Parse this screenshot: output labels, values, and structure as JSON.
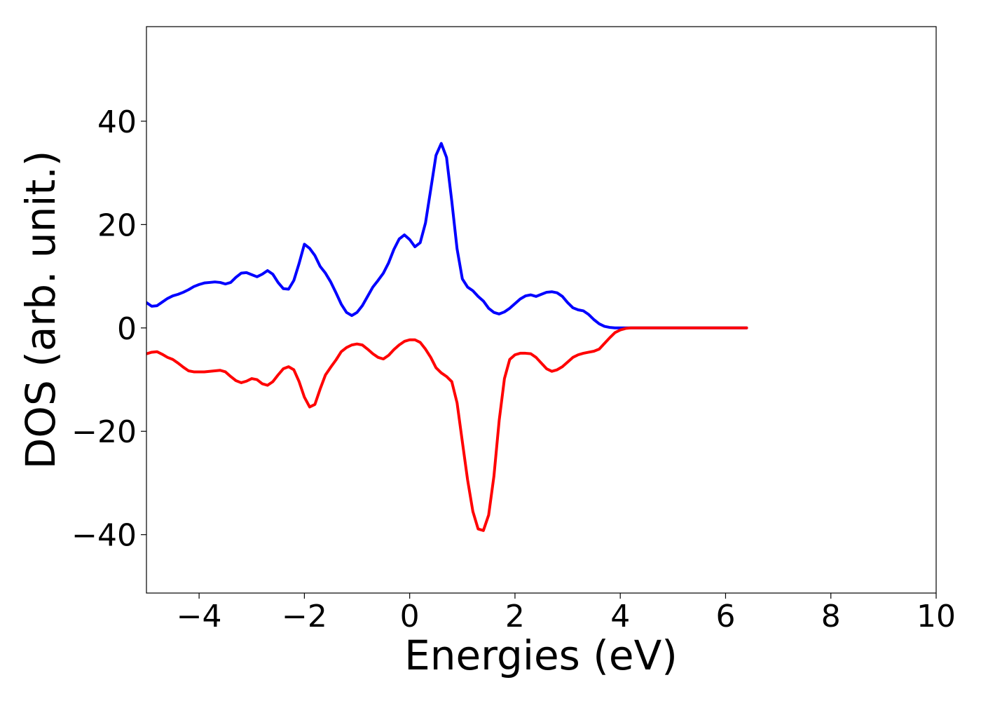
{
  "chart_data": {
    "type": "line",
    "x_label": "Energies (eV)",
    "y_label": "DOS (arb. unit.)",
    "x": [
      -5,
      -4.9,
      -4.8,
      -4.7,
      -4.6,
      -4.5,
      -4.4,
      -4.3,
      -4.2,
      -4.1,
      -4,
      -3.9,
      -3.8,
      -3.7,
      -3.6,
      -3.5,
      -3.4,
      -3.3,
      -3.2,
      -3.1,
      -3,
      -2.9,
      -2.8,
      -2.7,
      -2.6,
      -2.5,
      -2.4,
      -2.3,
      -2.2,
      -2.1,
      -2,
      -1.9,
      -1.8,
      -1.7,
      -1.6,
      -1.5,
      -1.4,
      -1.3,
      -1.2,
      -1.1,
      -1,
      -0.9,
      -0.8,
      -0.7,
      -0.6,
      -0.5,
      -0.4,
      -0.3,
      -0.2,
      -0.1,
      0,
      0.1,
      0.2,
      0.3,
      0.4,
      0.5,
      0.6,
      0.7,
      0.8,
      0.9,
      1,
      1.1,
      1.2,
      1.3,
      1.4,
      1.5,
      1.6,
      1.7,
      1.8,
      1.9,
      2,
      2.1,
      2.2,
      2.3,
      2.4,
      2.5,
      2.6,
      2.7,
      2.8,
      2.9,
      3,
      3.1,
      3.2,
      3.3,
      3.4,
      3.5,
      3.6,
      3.7,
      3.8,
      3.9,
      4,
      4.1,
      4.2,
      4.6,
      5.2,
      5.8,
      6.4
    ],
    "series": [
      {
        "color": "#0000ff",
        "values": [
          4.9,
          4.2,
          4.3,
          5,
          5.7,
          6.2,
          6.5,
          6.9,
          7.4,
          8,
          8.4,
          8.7,
          8.8,
          8.9,
          8.8,
          8.5,
          8.8,
          9.8,
          10.6,
          10.7,
          10.3,
          9.9,
          10.4,
          11.1,
          10.4,
          8.8,
          7.6,
          7.5,
          9.2,
          12.5,
          16.2,
          15.4,
          14,
          11.9,
          10.6,
          8.9,
          6.8,
          4.6,
          3,
          2.4,
          3,
          4.3,
          6.1,
          7.9,
          9.2,
          10.6,
          12.6,
          15.2,
          17.2,
          18,
          17.1,
          15.7,
          16.5,
          20.3,
          26.8,
          33.4,
          35.7,
          33,
          24.5,
          15.3,
          9.5,
          7.9,
          7.2,
          6.1,
          5.2,
          3.8,
          3,
          2.7,
          3.1,
          3.8,
          4.7,
          5.6,
          6.2,
          6.4,
          6.1,
          6.5,
          6.9,
          7,
          6.8,
          6.1,
          4.9,
          3.9,
          3.5,
          3.3,
          2.6,
          1.6,
          0.8,
          0.3,
          0.1,
          0,
          0,
          0,
          0,
          0,
          0,
          0,
          0
        ]
      },
      {
        "color": "#ff0000",
        "values": [
          -5,
          -4.7,
          -4.6,
          -5.1,
          -5.7,
          -6.1,
          -6.8,
          -7.6,
          -8.3,
          -8.5,
          -8.5,
          -8.5,
          -8.4,
          -8.3,
          -8.2,
          -8.5,
          -9.4,
          -10.2,
          -10.6,
          -10.3,
          -9.8,
          -10,
          -10.8,
          -11.1,
          -10.4,
          -9.1,
          -7.9,
          -7.5,
          -8.1,
          -10.4,
          -13.4,
          -15.3,
          -14.8,
          -11.8,
          -9.1,
          -7.6,
          -6.2,
          -4.6,
          -3.8,
          -3.3,
          -3.1,
          -3.3,
          -4.1,
          -5,
          -5.7,
          -6,
          -5.3,
          -4.2,
          -3.3,
          -2.6,
          -2.3,
          -2.3,
          -2.8,
          -4.1,
          -5.7,
          -7.7,
          -8.7,
          -9.4,
          -10.4,
          -14.5,
          -22,
          -29.4,
          -35.5,
          -38.9,
          -39.2,
          -36.2,
          -28.7,
          -17.9,
          -9.8,
          -6.1,
          -5.2,
          -4.9,
          -4.9,
          -5,
          -5.7,
          -6.8,
          -7.9,
          -8.4,
          -8.1,
          -7.5,
          -6.6,
          -5.7,
          -5.2,
          -4.9,
          -4.7,
          -4.5,
          -4.1,
          -3,
          -1.9,
          -0.9,
          -0.4,
          -0.1,
          0,
          0,
          0,
          0,
          0
        ]
      }
    ],
    "xlim": [
      -5,
      10
    ],
    "xticks": [
      {
        "value": -4,
        "label": "−4"
      },
      {
        "value": -2,
        "label": "−2"
      },
      0,
      2,
      4,
      6,
      8,
      10
    ],
    "ylim": [
      -51.3,
      58.3
    ],
    "yticks": [
      {
        "value": -40,
        "label": "−40"
      },
      {
        "value": -20,
        "label": "−20"
      },
      0,
      20,
      40
    ],
    "grid": false
  }
}
